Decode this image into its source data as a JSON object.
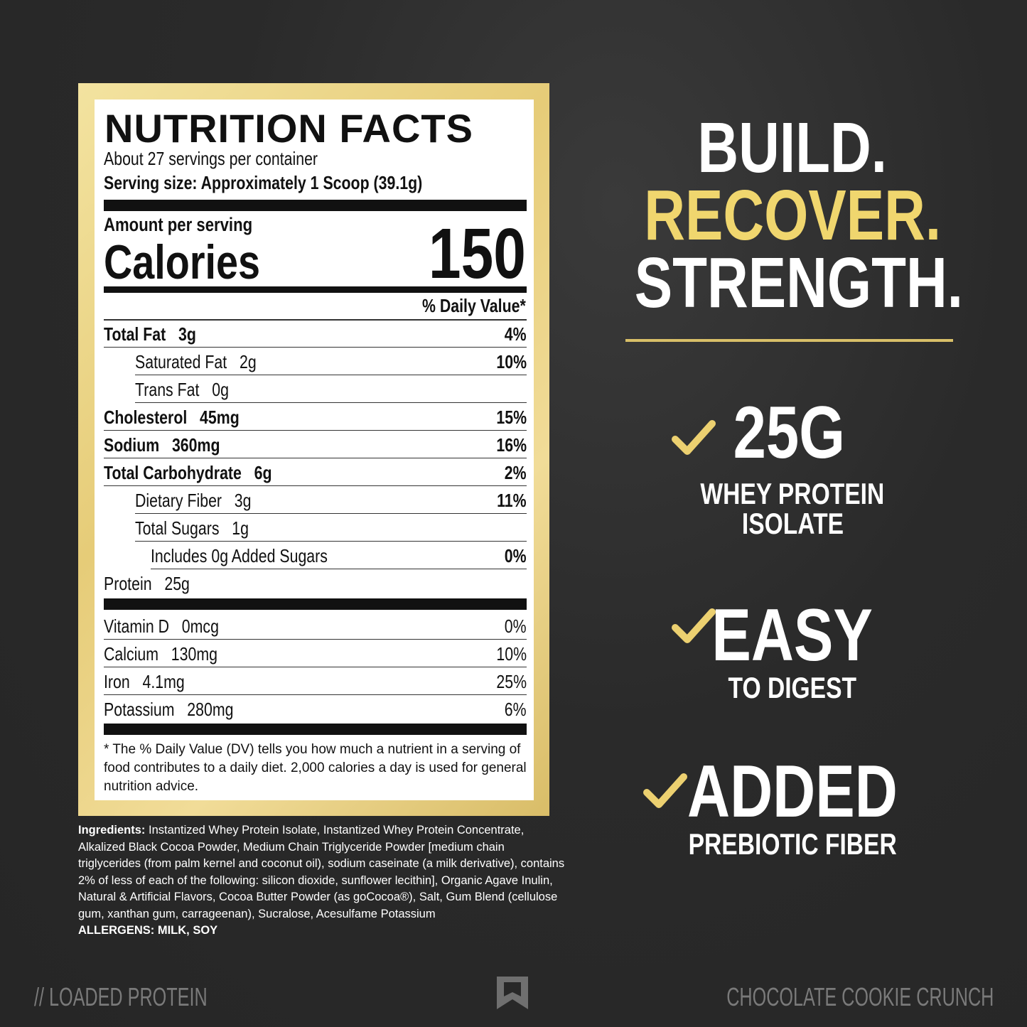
{
  "label": {
    "title": "NUTRITION FACTS",
    "servings": "About 27 servings per container",
    "serving_size": "Serving size: Approximately 1 Scoop (39.1g)",
    "amount_per_serving": "Amount per serving",
    "calories_label": "Calories",
    "calories_value": "150",
    "dv_header": "% Daily Value*",
    "rows": [
      {
        "name": "Total Fat",
        "amount": "3g",
        "dv": "4%"
      },
      {
        "name": "Saturated Fat",
        "amount": "2g",
        "dv": "10%"
      },
      {
        "name": "Trans Fat",
        "amount": "0g"
      },
      {
        "name": "Cholesterol",
        "amount": "45mg",
        "dv": "15%"
      },
      {
        "name": "Sodium",
        "amount": "360mg",
        "dv": "16%"
      },
      {
        "name": "Total Carbohydrate",
        "amount": "6g",
        "dv": "2%"
      },
      {
        "name": "Dietary Fiber",
        "amount": "3g",
        "dv": "11%"
      },
      {
        "name": "Total Sugars",
        "amount": "1g"
      },
      {
        "name": "Includes 0g Added Sugars",
        "dv": "0%"
      },
      {
        "name": "Protein",
        "amount": "25g"
      }
    ],
    "vitamins": [
      {
        "name": "Vitamin D",
        "amount": "0mcg",
        "dv": "0%"
      },
      {
        "name": "Calcium",
        "amount": "130mg",
        "dv": "10%"
      },
      {
        "name": "Iron",
        "amount": "4.1mg",
        "dv": "25%"
      },
      {
        "name": "Potassium",
        "amount": "280mg",
        "dv": "6%"
      }
    ],
    "footnote": "* The % Daily Value (DV) tells you how much a nutrient in a serving of food contributes to a daily diet. 2,000 calories a day is used for general nutrition advice."
  },
  "ingredients": {
    "label": "Ingredients:",
    "text": "Instantized Whey Protein Isolate, Instantized Whey Protein Concentrate, Alkalized Black Cocoa Powder, Medium Chain Triglyceride Powder [medium chain triglycerides (from palm kernel and coconut oil), sodium caseinate (a milk derivative), contains 2% of less of each of the following: silicon dioxide, sunflower lecithin], Organic Agave Inulin, Natural & Artificial Flavors, Cocoa Butter Powder (as goCocoa®), Salt, Gum Blend (cellulose gum, xanthan gum, carrageenan), Sucralose, Acesulfame Potassium",
    "allergens": "ALLERGENS: MILK, SOY"
  },
  "tagline": [
    "BUILD.",
    "RECOVER.",
    "STRENGTH."
  ],
  "features": [
    {
      "big": "25G",
      "small": [
        "WHEY PROTEIN",
        "ISOLATE"
      ]
    },
    {
      "big": "EASY",
      "small": [
        "TO DIGEST"
      ]
    },
    {
      "big": "ADDED",
      "small": [
        "PREBIOTIC FIBER"
      ]
    }
  ],
  "footer": {
    "left": "// LOADED PROTEIN",
    "right": "CHOCOLATE COOKIE CRUNCH"
  }
}
